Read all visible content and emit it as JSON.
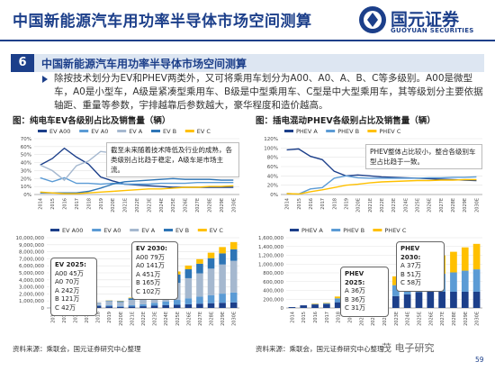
{
  "header": {
    "title": "中国新能源汽车用功率半导体市场空间测算",
    "brand_cn": "国元证券",
    "brand_en": "GUOYUAN SECURITIES"
  },
  "section": {
    "number": "6",
    "title": "中国新能源汽车用功率半导体市场空间测算"
  },
  "paragraph": "除按技术划分为EV和PHEV两类外，又可将乘用车划分为A00、A0、A、B、C等多级别。A00是微型车，A0是小型车，A级是紧凑型乘用车、B级是中型乘用车、C型是中大型乘用车，其等级划分主要依据轴距、重量等参数，宇排越靠后参数越大，豪华程度和造价越高。",
  "figures": {
    "left_title": "图：纯电车EV各级别占比及销售量（辆）",
    "right_title": "图：插电混动PHEV各级别占比及销售量（辆）"
  },
  "sources": {
    "left": "资料来源：乘联会，国元证券研究中心整理",
    "right": "资料来源：乘联会，国元证券研究中心整理"
  },
  "watermark": "茂 电子研究",
  "page_number": "59",
  "notes": {
    "ev_share": "截至未来随着技术降低及行业的成熟，各类级别占比趋于稳定，A级车是市场主流。",
    "phev_share": "PHEV整体占比较小，整合各级别车型占比趋于一致。"
  },
  "callouts": {
    "ev_2025": [
      "EV 2025:",
      "A00 45万",
      "A0 70万",
      "A 242万",
      "B 121万",
      "C 42万"
    ],
    "ev_2030": [
      "EV 2030:",
      "A00 79万",
      "A0 141万",
      "A 451万",
      "B 165万",
      "C 102万"
    ],
    "phev_2025": [
      "PHEV 2025:",
      "A 36万",
      "B 36万",
      "C 31万"
    ],
    "phev_2030": [
      "PHEV 2030:",
      "A 37万",
      "B 51万",
      "C 58万"
    ]
  },
  "colors": {
    "brand": "#1c3f8a",
    "a00": "#1c3f8a",
    "a0": "#5b9bd5",
    "a": "#a5b8cf",
    "b": "#2e75b6",
    "c": "#ffc000"
  },
  "chart_data": [
    {
      "type": "line",
      "title": "纯电车EV各级别占比",
      "x": [
        "2014",
        "2015",
        "2016",
        "2017",
        "2018",
        "2019",
        "2020E",
        "2021E",
        "2022E",
        "2023E",
        "2024E",
        "2025E",
        "2026E",
        "2027E",
        "2028E",
        "2029E",
        "2030E"
      ],
      "ylim": [
        0,
        0.7
      ],
      "yticks": [
        "0%",
        "10%",
        "20%",
        "30%",
        "40%",
        "50%",
        "60%",
        "70%"
      ],
      "series": [
        {
          "name": "EV A00",
          "values": [
            0.37,
            0.45,
            0.58,
            0.47,
            0.38,
            0.22,
            0.17,
            0.13,
            0.12,
            0.11,
            0.1,
            0.09,
            0.09,
            0.09,
            0.09,
            0.09,
            0.09
          ]
        },
        {
          "name": "EV A0",
          "values": [
            0.21,
            0.16,
            0.21,
            0.14,
            0.14,
            0.13,
            0.14,
            0.13,
            0.13,
            0.13,
            0.14,
            0.14,
            0.14,
            0.15,
            0.15,
            0.15,
            0.15
          ]
        },
        {
          "name": "EV A",
          "values": [
            0.37,
            0.3,
            0.18,
            0.36,
            0.42,
            0.54,
            0.52,
            0.5,
            0.51,
            0.5,
            0.5,
            0.49,
            0.49,
            0.49,
            0.49,
            0.48,
            0.48
          ]
        },
        {
          "name": "EV B",
          "values": [
            0.02,
            0.02,
            0.02,
            0.02,
            0.04,
            0.08,
            0.13,
            0.16,
            0.17,
            0.18,
            0.19,
            0.2,
            0.19,
            0.19,
            0.19,
            0.18,
            0.18
          ]
        },
        {
          "name": "EV C",
          "values": [
            0.03,
            0.02,
            0.01,
            0.01,
            0.02,
            0.03,
            0.04,
            0.05,
            0.06,
            0.07,
            0.07,
            0.08,
            0.09,
            0.09,
            0.1,
            0.1,
            0.11
          ]
        }
      ],
      "legend": "top"
    },
    {
      "type": "line",
      "title": "插电混动PHEV各级别占比",
      "x": [
        "2014",
        "2015",
        "2016",
        "2017",
        "2018",
        "2019",
        "2020E",
        "2021E",
        "2022E",
        "2023E",
        "2024E",
        "2025E",
        "2026E",
        "2027E",
        "2028E",
        "2029E",
        "2030E"
      ],
      "ylim": [
        0,
        1.2
      ],
      "yticks": [
        "0%",
        "20%",
        "40%",
        "60%",
        "80%",
        "100%",
        "120%"
      ],
      "series": [
        {
          "name": "PHEV A",
          "values": [
            0.96,
            0.98,
            0.82,
            0.75,
            0.5,
            0.4,
            0.42,
            0.4,
            0.38,
            0.37,
            0.36,
            0.35,
            0.34,
            0.33,
            0.32,
            0.31,
            0.3
          ]
        },
        {
          "name": "PHEV B",
          "values": [
            0.02,
            0.01,
            0.12,
            0.15,
            0.35,
            0.4,
            0.36,
            0.35,
            0.35,
            0.35,
            0.35,
            0.35,
            0.36,
            0.36,
            0.37,
            0.37,
            0.38
          ]
        },
        {
          "name": "PHEV C",
          "values": [
            0.02,
            0.01,
            0.06,
            0.1,
            0.15,
            0.2,
            0.22,
            0.25,
            0.27,
            0.28,
            0.29,
            0.3,
            0.3,
            0.31,
            0.31,
            0.32,
            0.32
          ]
        }
      ],
      "legend": "top"
    },
    {
      "type": "bar",
      "title": "纯电车EV各级别销售量",
      "stacked": true,
      "categories": [
        "2014",
        "2015",
        "2016",
        "2017",
        "2018",
        "2019",
        "2020E",
        "2021E",
        "2022E",
        "2023E",
        "2024E",
        "2025E",
        "2026E",
        "2027E",
        "2028E",
        "2029E",
        "2030E"
      ],
      "ylim": [
        0,
        10000000
      ],
      "yticks": [
        "0",
        "1,000,000",
        "2,000,000",
        "3,000,000",
        "4,000,000",
        "5,000,000",
        "6,000,000",
        "7,000,000",
        "8,000,000",
        "9,000,000",
        "10,000,000"
      ],
      "series": [
        {
          "name": "EV A00",
          "values": [
            20000,
            60000,
            150000,
            220000,
            300000,
            240000,
            160000,
            190000,
            250000,
            320000,
            390000,
            450000,
            530000,
            610000,
            680000,
            740000,
            790000
          ]
        },
        {
          "name": "EV A0",
          "values": [
            10000,
            20000,
            50000,
            70000,
            110000,
            140000,
            140000,
            200000,
            280000,
            400000,
            540000,
            700000,
            850000,
            1000000,
            1150000,
            1300000,
            1410000
          ]
        },
        {
          "name": "EV A",
          "values": [
            20000,
            50000,
            40000,
            170000,
            340000,
            600000,
            540000,
            760000,
            1090000,
            1470000,
            1930000,
            2420000,
            2860000,
            3320000,
            3770000,
            4150000,
            4510000
          ]
        },
        {
          "name": "EV B",
          "values": [
            0,
            0,
            0,
            10000,
            30000,
            80000,
            130000,
            240000,
            360000,
            510000,
            680000,
            1210000,
            1270000,
            1370000,
            1490000,
            1580000,
            1650000
          ]
        },
        {
          "name": "EV C",
          "values": [
            0,
            0,
            0,
            0,
            10000,
            30000,
            40000,
            80000,
            130000,
            200000,
            280000,
            420000,
            530000,
            650000,
            780000,
            900000,
            1020000
          ]
        }
      ],
      "legend": "top"
    },
    {
      "type": "bar",
      "title": "插电混动PHEV各级别销售量",
      "stacked": true,
      "categories": [
        "2014",
        "2015",
        "2016",
        "2017",
        "2018",
        "2019",
        "2020E",
        "2021E",
        "2022E",
        "2023E",
        "2024E",
        "2025E",
        "2026E",
        "2027E",
        "2028E",
        "2029E",
        "2030E"
      ],
      "ylim": [
        0,
        1600000
      ],
      "yticks": [
        "0",
        "200,000",
        "400,000",
        "600,000",
        "800,000",
        "1,000,000",
        "1,200,000",
        "1,400,000",
        "1,600,000"
      ],
      "series": [
        {
          "name": "PHEV A",
          "values": [
            20000,
            60000,
            80000,
            90000,
            130000,
            120000,
            110000,
            170000,
            220000,
            270000,
            310000,
            360000,
            370000,
            370000,
            370000,
            370000,
            370000
          ]
        },
        {
          "name": "PHEV B",
          "values": [
            0,
            0,
            10000,
            20000,
            90000,
            110000,
            100000,
            150000,
            200000,
            250000,
            300000,
            360000,
            380000,
            410000,
            440000,
            480000,
            510000
          ]
        },
        {
          "name": "PHEV C",
          "values": [
            0,
            0,
            10000,
            10000,
            40000,
            60000,
            60000,
            100000,
            150000,
            200000,
            250000,
            310000,
            360000,
            420000,
            470000,
            530000,
            580000
          ]
        }
      ],
      "legend": "top"
    }
  ]
}
